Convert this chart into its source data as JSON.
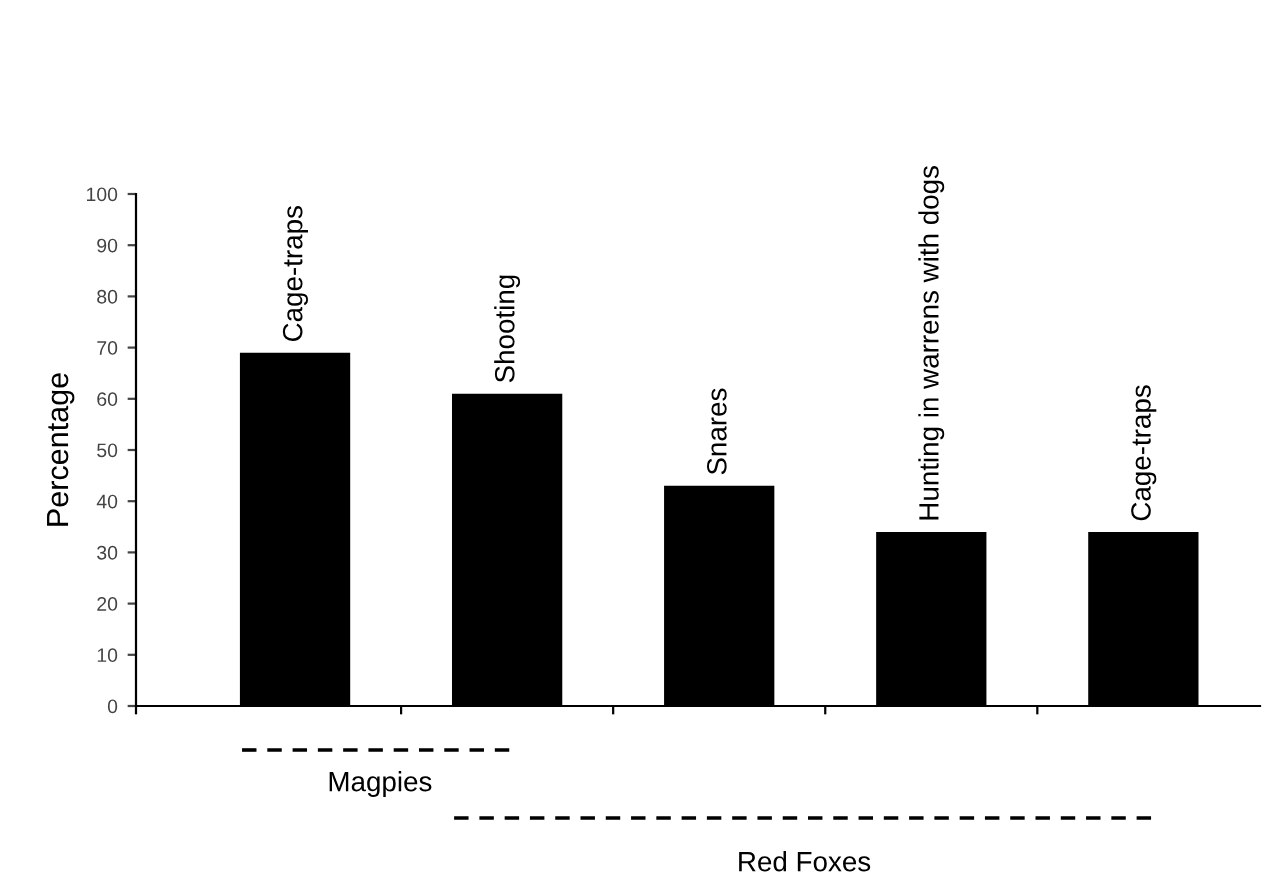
{
  "chart_data": {
    "type": "bar",
    "ylabel": "Percentage",
    "categories": [
      "Cage-traps",
      "Shooting",
      "Snares",
      "Hunting in warrens with dogs",
      "Cage-traps"
    ],
    "values": [
      69,
      61,
      43,
      34,
      34
    ],
    "color": "#000000",
    "ylim": [
      0,
      100
    ],
    "yticks": [
      0,
      10,
      20,
      30,
      40,
      50,
      60,
      70,
      80,
      90,
      100
    ],
    "grid": false,
    "legend": false,
    "annotations": [
      "Magpies",
      "Red Foxes"
    ]
  }
}
